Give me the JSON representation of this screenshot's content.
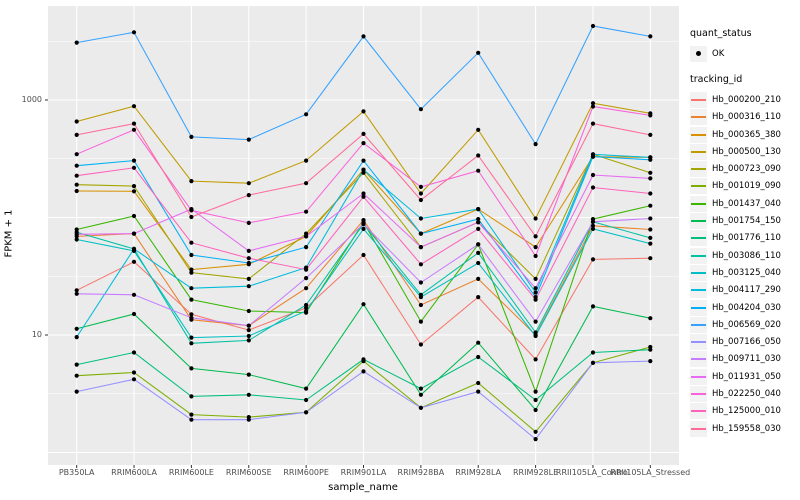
{
  "figure": {
    "y_axis_title": "FPKM + 1",
    "x_axis_title": "sample_name",
    "panel_bg": "#EBEBEB",
    "grid_color": "#FFFFFF",
    "tick_color": "#333333",
    "tick_label_color": "#4D4D4D",
    "point_color": "#000000"
  },
  "legend": {
    "quant_status_title": "quant_status",
    "ok_label": "OK",
    "tracking_id_title": "tracking_id"
  },
  "chart_data": {
    "type": "line",
    "title": "",
    "xlabel": "sample_name",
    "ylabel": "FPKM + 1",
    "y_scale": "log10",
    "ylim": [
      0.7,
      6300
    ],
    "y_major_ticks": [
      1,
      10,
      100,
      1000
    ],
    "y_labeled_ticks": [
      {
        "label": "1000",
        "value": 1000
      },
      {
        "label": "10",
        "value": 10
      }
    ],
    "grid": "on",
    "legend_position": "right",
    "categories": [
      "PB350LA",
      "RRIM600LA",
      "RRIM600LE",
      "RRIM600SE",
      "RRIM600PE",
      "RRIM901LA",
      "RRIM928BA",
      "RRIM928LA",
      "RRIM928LE",
      "RRII105LA_Control",
      "RRII105LA_Stressed"
    ],
    "quant_status": "OK",
    "series": [
      {
        "name": "Hb_000200_210",
        "color": "#F8766D",
        "values": [
          24,
          42,
          15,
          11,
          17,
          48,
          8.3,
          21,
          6.2,
          44,
          45
        ]
      },
      {
        "name": "Hb_000316_110",
        "color": "#EA8331",
        "values": [
          69,
          73,
          13.5,
          12,
          25,
          95,
          18,
          30,
          10,
          85,
          79
        ]
      },
      {
        "name": "Hb_000365_380",
        "color": "#D89000",
        "values": [
          168,
          167,
          36,
          40,
          69,
          255,
          73,
          118,
          56,
          330,
          325
        ]
      },
      {
        "name": "Hb_000500_130",
        "color": "#C09B00",
        "values": [
          656,
          886,
          204,
          196,
          305,
          800,
          160,
          558,
          98,
          940,
          770
        ]
      },
      {
        "name": "Hb_000723_090",
        "color": "#A3A500",
        "values": [
          190,
          185,
          34,
          30,
          73,
          240,
          56,
          91,
          30,
          345,
          240
        ]
      },
      {
        "name": "Hb_001019_090",
        "color": "#7CAE00",
        "values": [
          4.5,
          4.8,
          2.1,
          2.0,
          2.2,
          6.0,
          2.4,
          3.9,
          1.5,
          5.8,
          7.9
        ]
      },
      {
        "name": "Hb_001437_040",
        "color": "#39B600",
        "values": [
          79,
          103,
          20,
          16,
          15.5,
          91,
          13,
          59,
          3.3,
          97,
          126
        ]
      },
      {
        "name": "Hb_001754_150",
        "color": "#00BB4E",
        "values": [
          11.3,
          15.1,
          5.2,
          4.6,
          3.5,
          18.3,
          3.1,
          8.6,
          2.3,
          17.5,
          13.9
        ]
      },
      {
        "name": "Hb_001776_110",
        "color": "#00BF7D",
        "values": [
          5.6,
          7.1,
          3.0,
          3.1,
          2.8,
          6.2,
          3.5,
          6.5,
          2.8,
          7.1,
          7.5
        ]
      },
      {
        "name": "Hb_003086_110",
        "color": "#00C1A3",
        "values": [
          75,
          54,
          8.5,
          9.0,
          18,
          88,
          22,
          50,
          10.5,
          92,
          67
        ]
      },
      {
        "name": "Hb_003125_040",
        "color": "#00BFC4",
        "values": [
          65,
          52,
          9.5,
          9.8,
          16,
          80,
          21,
          41,
          9.8,
          80,
          60
        ]
      },
      {
        "name": "Hb_004117_290",
        "color": "#00BBDB",
        "values": [
          9.6,
          54,
          25,
          26,
          37.5,
          255,
          98,
          118,
          23,
          345,
          325
        ]
      },
      {
        "name": "Hb_004204_030",
        "color": "#00B0F6",
        "values": [
          276,
          305,
          48,
          41,
          56,
          305,
          73,
          97,
          21,
          330,
          310
        ]
      },
      {
        "name": "Hb_006569_020",
        "color": "#35A2FF",
        "values": [
          3080,
          3770,
          485,
          460,
          755,
          3480,
          835,
          2520,
          421,
          4260,
          3480
        ]
      },
      {
        "name": "Hb_007166_050",
        "color": "#9590FF",
        "values": [
          3.3,
          4.2,
          1.9,
          1.9,
          2.2,
          4.9,
          2.4,
          3.3,
          1.3,
          5.8,
          6.0
        ]
      },
      {
        "name": "Hb_009711_030",
        "color": "#C77CFF",
        "values": [
          22.4,
          22,
          14,
          12,
          30.5,
          88,
          28,
          59,
          13,
          92,
          98
        ]
      },
      {
        "name": "Hb_011931_050",
        "color": "#E76BF3",
        "values": [
          72,
          73,
          118,
          52,
          69,
          160,
          56,
          91,
          25,
          230,
          215
        ]
      },
      {
        "name": "Hb_022250_040",
        "color": "#FA62DB",
        "values": [
          346,
          558,
          115,
          90,
          112,
          430,
          182,
          250,
          47,
          880,
          740
        ]
      },
      {
        "name": "Hb_125000_010",
        "color": "#FF62BC",
        "values": [
          227,
          265,
          61,
          45,
          36,
          150,
          40,
          80,
          20,
          180,
          160
        ]
      },
      {
        "name": "Hb_159558_030",
        "color": "#FF6A98",
        "values": [
          505,
          630,
          101,
          155,
          196,
          515,
          141,
          337,
          69,
          630,
          505
        ]
      }
    ]
  }
}
